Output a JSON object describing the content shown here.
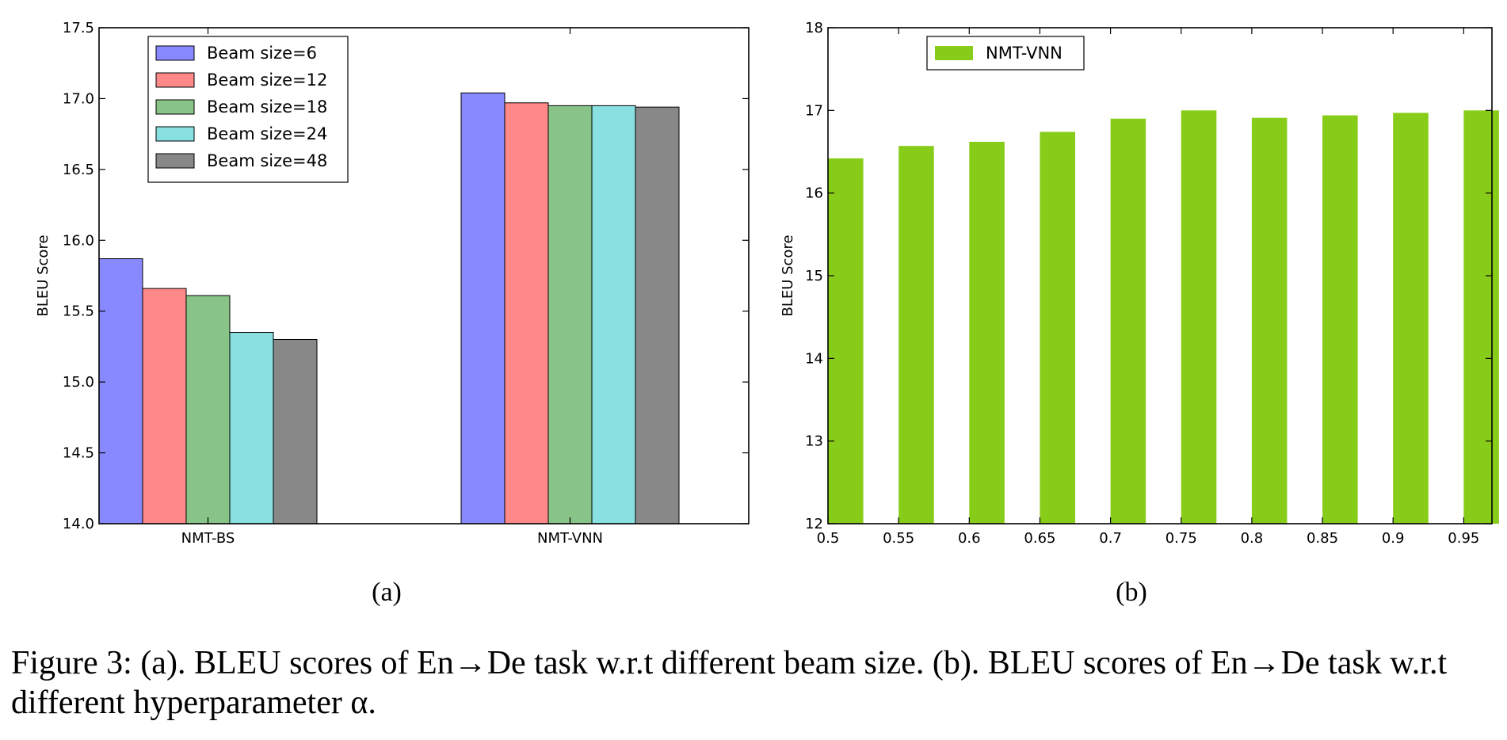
{
  "chart_data": [
    {
      "type": "bar",
      "label": "(a)",
      "categories": [
        "NMT-BS",
        "NMT-VNN"
      ],
      "series": [
        {
          "name": "Beam size=6",
          "color": "#8888ff",
          "values": [
            15.87,
            17.04
          ]
        },
        {
          "name": "Beam size=12",
          "color": "#ff8888",
          "values": [
            15.66,
            16.97
          ]
        },
        {
          "name": "Beam size=18",
          "color": "#88c488",
          "values": [
            15.61,
            16.95
          ]
        },
        {
          "name": "Beam size=24",
          "color": "#88e0e0",
          "values": [
            15.35,
            16.95
          ]
        },
        {
          "name": "Beam size=48",
          "color": "#888888",
          "values": [
            15.3,
            16.94
          ]
        }
      ],
      "ylabel": "BLEU Score",
      "xlabel": "",
      "ylim": [
        14.0,
        17.5
      ],
      "yticks": [
        "14.0",
        "14.5",
        "15.0",
        "15.5",
        "16.0",
        "16.5",
        "17.0",
        "17.5"
      ],
      "legend_position": "top-left",
      "grid": false
    },
    {
      "type": "bar",
      "label": "(b)",
      "x": [
        "0.5",
        "0.55",
        "0.6",
        "0.65",
        "0.7",
        "0.75",
        "0.8",
        "0.85",
        "0.9",
        "0.95"
      ],
      "series": [
        {
          "name": "NMT-VNN",
          "color": "#88cc1a",
          "values": [
            16.42,
            16.57,
            16.62,
            16.74,
            16.9,
            17.0,
            16.91,
            16.94,
            16.97,
            17.0
          ]
        }
      ],
      "ylabel": "BLEU Score",
      "xlabel": "",
      "ylim": [
        12,
        18
      ],
      "yticks": [
        "12",
        "13",
        "14",
        "15",
        "16",
        "17",
        "18"
      ],
      "legend_position": "top-left",
      "grid": false
    }
  ],
  "caption": "Figure 3: (a). BLEU scores of En→De task w.r.t different beam size. (b). BLEU scores of En→De task w.r.t different hyperparameter α."
}
